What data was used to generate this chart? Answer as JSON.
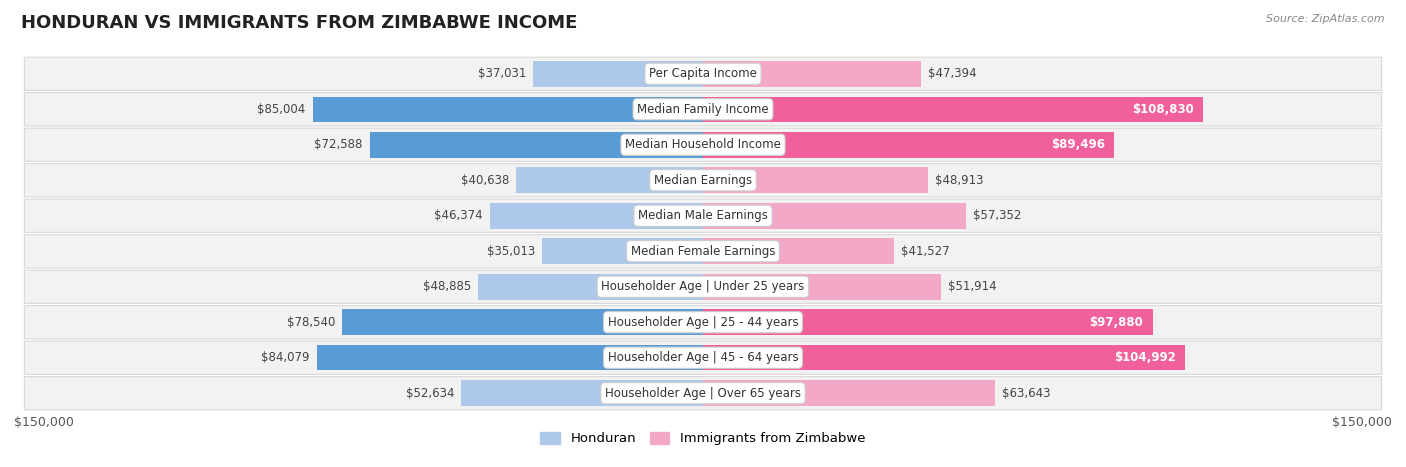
{
  "title": "HONDURAN VS IMMIGRANTS FROM ZIMBABWE INCOME",
  "source": "Source: ZipAtlas.com",
  "categories": [
    "Per Capita Income",
    "Median Family Income",
    "Median Household Income",
    "Median Earnings",
    "Median Male Earnings",
    "Median Female Earnings",
    "Householder Age | Under 25 years",
    "Householder Age | 25 - 44 years",
    "Householder Age | 45 - 64 years",
    "Householder Age | Over 65 years"
  ],
  "honduran_values": [
    37031,
    85004,
    72588,
    40638,
    46374,
    35013,
    48885,
    78540,
    84079,
    52634
  ],
  "zimbabwe_values": [
    47394,
    108830,
    89496,
    48913,
    57352,
    41527,
    51914,
    97880,
    104992,
    63643
  ],
  "honduran_color_light": "#adc8e8",
  "honduran_color_dark": "#5b9bd5",
  "zimbabwe_color_light": "#f4a8c8",
  "zimbabwe_color_dark": "#f0609a",
  "honduran_dark_indices": [
    1,
    2,
    7,
    8
  ],
  "zimbabwe_dark_indices": [
    1,
    2,
    7,
    8
  ],
  "max_value": 150000,
  "bg_color": "#ffffff",
  "row_bg_color": "#f2f2f2",
  "row_border_color": "#d8d8d8",
  "title_fontsize": 13,
  "label_fontsize": 8.5,
  "axis_label": "$150,000",
  "legend_honduran": "Honduran",
  "legend_zimbabwe": "Immigrants from Zimbabwe"
}
